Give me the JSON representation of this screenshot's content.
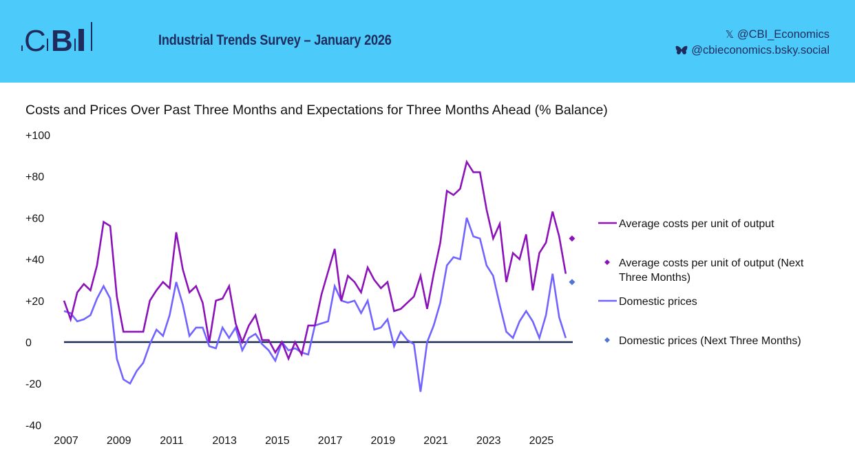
{
  "header": {
    "logo_text": "CBI",
    "survey_title": "Industrial Trends Survey – January 2026",
    "social": [
      {
        "icon": "x-icon",
        "glyph": "𝕏",
        "handle": "@CBI_Economics"
      },
      {
        "icon": "bluesky-butterfly-icon",
        "glyph": "",
        "handle": "@cbieconomics.bsky.social"
      }
    ]
  },
  "colors": {
    "header_bg": "#4ccbfb",
    "brand_navy": "#1f2b5c",
    "avg_costs": "#8b12b8",
    "domestic_prices": "#7163ff",
    "avg_costs_expect": "#8b12b8",
    "domestic_prices_expect": "#4f73d8",
    "zero_line": "#1a2a50"
  },
  "chart_data": {
    "type": "line",
    "title": "Costs and Prices Over Past Three Months and Expectations for Three Months Ahead (% Balance)",
    "xlabel": "",
    "ylabel": "",
    "frequency": "quarterly",
    "x_start": "2007 Q1",
    "x_tick_labels": [
      "2007",
      "2009",
      "2011",
      "2013",
      "2015",
      "2017",
      "2019",
      "2021",
      "2023",
      "2025"
    ],
    "x_range_years": [
      2007,
      2026.5
    ],
    "y_tick_labels": [
      "+100",
      "+80",
      "+60",
      "+40",
      "+20",
      "0",
      "-20",
      "-40"
    ],
    "y_ticks": [
      100,
      80,
      60,
      40,
      20,
      0,
      -20,
      -40
    ],
    "ylim": [
      -40,
      100
    ],
    "grid": false,
    "zero_line": true,
    "legend_position": "right",
    "series": [
      {
        "name": "Average costs per unit of output",
        "kind": "line",
        "values": [
          20,
          11,
          24,
          28,
          25,
          37,
          58,
          56,
          22,
          5,
          5,
          5,
          5,
          20,
          25,
          29,
          26,
          53,
          35,
          24,
          27,
          19,
          0,
          20,
          21,
          27,
          9,
          0,
          8,
          13,
          1,
          1,
          -5,
          0,
          -8,
          0,
          -6,
          8,
          8,
          23,
          34,
          45,
          20,
          32,
          29,
          24,
          36,
          30,
          26,
          29,
          15,
          16,
          19,
          22,
          32,
          16,
          33,
          48,
          73,
          71,
          74,
          87,
          82,
          82,
          64,
          50,
          57,
          29,
          43,
          40,
          52,
          25,
          43,
          48,
          63,
          51,
          33
        ]
      },
      {
        "name": "Average costs per unit of output (Next Three Months)",
        "kind": "marker",
        "period_offset": 77,
        "value": 50
      },
      {
        "name": "Domestic prices",
        "kind": "line",
        "values": [
          15,
          14,
          10,
          11,
          13,
          21,
          27,
          21,
          -8,
          -18,
          -20,
          -14,
          -10,
          -1,
          6,
          3,
          13,
          29,
          18,
          3,
          7,
          7,
          -2,
          -3,
          7,
          2,
          7,
          -4,
          2,
          4,
          -1,
          -4,
          -9,
          0,
          -4,
          -3,
          -5,
          -6,
          8,
          9,
          10,
          27,
          20,
          19,
          20,
          14,
          20,
          6,
          7,
          11,
          -2,
          5,
          1,
          -1,
          -24,
          0,
          8,
          19,
          37,
          41,
          40,
          60,
          51,
          50,
          37,
          32,
          18,
          5,
          2,
          10,
          15,
          10,
          2,
          13,
          33,
          12,
          2
        ]
      },
      {
        "name": "Domestic prices (Next Three Months)",
        "kind": "marker",
        "period_offset": 77,
        "value": 29
      }
    ]
  }
}
